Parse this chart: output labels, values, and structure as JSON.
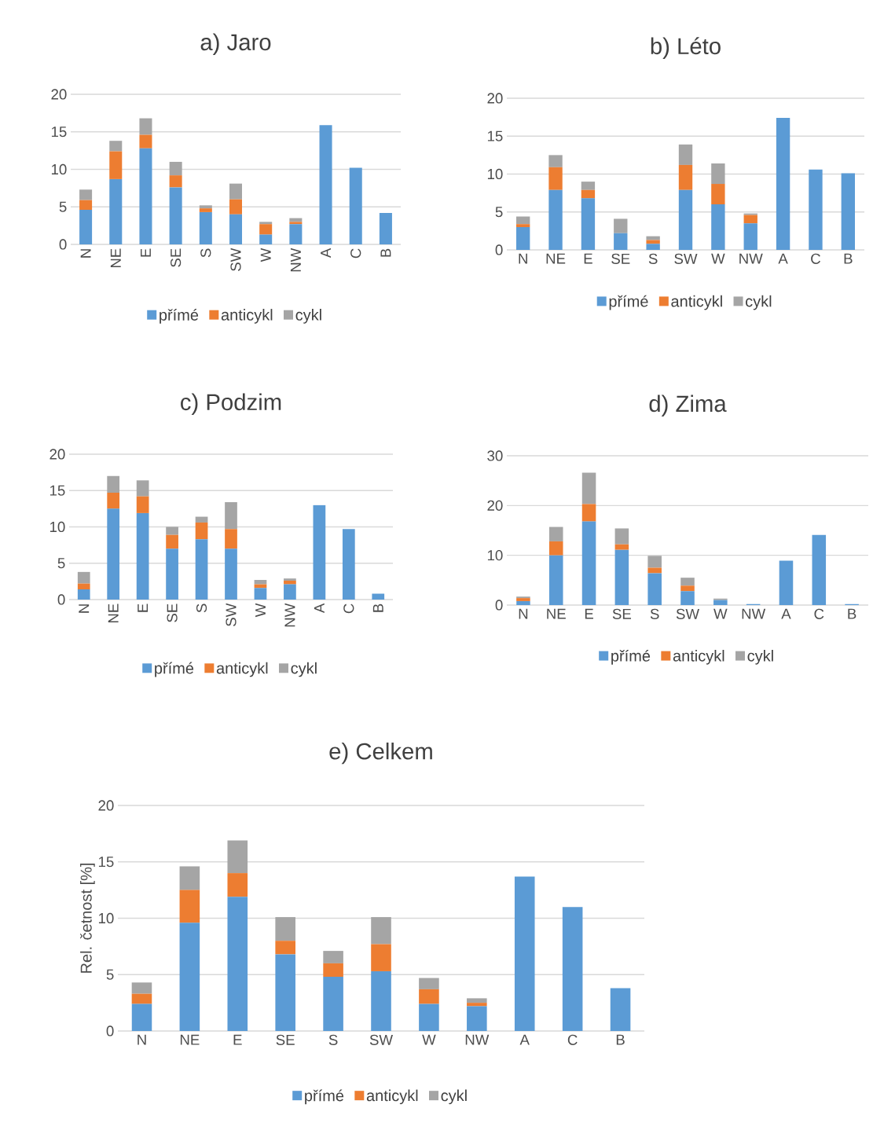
{
  "chart_data": [
    {
      "type": "bar",
      "stacked": true,
      "title": "a) Jaro",
      "categories": [
        "N",
        "NE",
        "E",
        "SE",
        "S",
        "SW",
        "W",
        "NW",
        "A",
        "C",
        "B"
      ],
      "series": [
        {
          "name": "přímé",
          "color": "#5b9bd5",
          "values": [
            4.6,
            8.7,
            12.8,
            7.6,
            4.3,
            4.0,
            1.3,
            2.7,
            15.9,
            10.2,
            4.2
          ]
        },
        {
          "name": "anticykl",
          "color": "#ed7d31",
          "values": [
            1.3,
            3.7,
            1.8,
            1.6,
            0.5,
            2.0,
            1.4,
            0.3,
            0,
            0,
            0
          ]
        },
        {
          "name": "cykl",
          "color": "#a5a5a5",
          "values": [
            1.4,
            1.4,
            2.2,
            1.8,
            0.4,
            2.1,
            0.3,
            0.5,
            0,
            0,
            0
          ]
        }
      ],
      "ylim": [
        0,
        20
      ],
      "yticks": [
        0,
        5,
        10,
        15,
        20
      ],
      "grid": "y",
      "legend": "bottom"
    },
    {
      "type": "bar",
      "stacked": true,
      "title": "b) Léto",
      "categories": [
        "N",
        "NE",
        "E",
        "SE",
        "S",
        "SW",
        "W",
        "NW",
        "A",
        "C",
        "B"
      ],
      "series": [
        {
          "name": "přímé",
          "color": "#5b9bd5",
          "values": [
            3.0,
            7.9,
            6.8,
            2.2,
            0.8,
            7.9,
            6.0,
            3.5,
            17.4,
            10.6,
            10.1
          ]
        },
        {
          "name": "anticykl",
          "color": "#ed7d31",
          "values": [
            0.4,
            3.0,
            1.1,
            0,
            0.5,
            3.3,
            2.7,
            1.1,
            0,
            0,
            0
          ]
        },
        {
          "name": "cykl",
          "color": "#a5a5a5",
          "values": [
            1.0,
            1.6,
            1.1,
            1.9,
            0.5,
            2.7,
            2.7,
            0.2,
            0,
            0,
            0
          ]
        }
      ],
      "ylim": [
        0,
        20
      ],
      "yticks": [
        0,
        5,
        10,
        15,
        20
      ],
      "grid": "y",
      "legend": "bottom"
    },
    {
      "type": "bar",
      "stacked": true,
      "title": "c) Podzim",
      "categories": [
        "N",
        "NE",
        "E",
        "SE",
        "S",
        "SW",
        "W",
        "NW",
        "A",
        "C",
        "B"
      ],
      "series": [
        {
          "name": "přímé",
          "color": "#5b9bd5",
          "values": [
            1.4,
            12.5,
            11.9,
            7.0,
            8.3,
            7.0,
            1.6,
            2.1,
            13.0,
            9.7,
            0.8
          ]
        },
        {
          "name": "anticykl",
          "color": "#ed7d31",
          "values": [
            0.8,
            2.2,
            2.3,
            1.9,
            2.3,
            2.7,
            0.5,
            0.5,
            0,
            0,
            0
          ]
        },
        {
          "name": "cykl",
          "color": "#a5a5a5",
          "values": [
            1.6,
            2.3,
            2.2,
            1.1,
            0.8,
            3.7,
            0.6,
            0.3,
            0,
            0,
            0
          ]
        }
      ],
      "ylim": [
        0,
        20
      ],
      "yticks": [
        0,
        5,
        10,
        15,
        20
      ],
      "grid": "y",
      "legend": "bottom"
    },
    {
      "type": "bar",
      "stacked": true,
      "title": "d) Zima",
      "categories": [
        "N",
        "NE",
        "E",
        "SE",
        "S",
        "SW",
        "W",
        "NW",
        "A",
        "C",
        "B"
      ],
      "series": [
        {
          "name": "přímé",
          "color": "#5b9bd5",
          "values": [
            0.8,
            10.0,
            16.8,
            11.1,
            6.4,
            2.8,
            1.0,
            0.2,
            8.9,
            14.1,
            0.2
          ]
        },
        {
          "name": "anticykl",
          "color": "#ed7d31",
          "values": [
            0.6,
            2.8,
            3.5,
            1.1,
            1.1,
            1.1,
            0,
            0,
            0,
            0,
            0
          ]
        },
        {
          "name": "cykl",
          "color": "#a5a5a5",
          "values": [
            0.3,
            2.9,
            6.3,
            3.2,
            2.4,
            1.6,
            0.3,
            0,
            0,
            0,
            0
          ]
        }
      ],
      "ylim": [
        0,
        30
      ],
      "yticks": [
        0,
        10,
        20,
        30
      ],
      "grid": "y",
      "legend": "bottom"
    },
    {
      "type": "bar",
      "stacked": true,
      "title": "e) Celkem",
      "ylabel": "Rel. četnost [%]",
      "categories": [
        "N",
        "NE",
        "E",
        "SE",
        "S",
        "SW",
        "W",
        "NW",
        "A",
        "C",
        "B"
      ],
      "series": [
        {
          "name": "přímé",
          "color": "#5b9bd5",
          "values": [
            2.4,
            9.6,
            11.9,
            6.8,
            4.8,
            5.3,
            2.4,
            2.2,
            13.7,
            11.0,
            3.8
          ]
        },
        {
          "name": "anticykl",
          "color": "#ed7d31",
          "values": [
            0.9,
            2.9,
            2.1,
            1.2,
            1.2,
            2.4,
            1.3,
            0.3,
            0,
            0,
            0
          ]
        },
        {
          "name": "cykl",
          "color": "#a5a5a5",
          "values": [
            1.0,
            2.1,
            2.9,
            2.1,
            1.1,
            2.4,
            1.0,
            0.4,
            0,
            0,
            0
          ]
        }
      ],
      "ylim": [
        0,
        20
      ],
      "yticks": [
        0,
        5,
        10,
        15,
        20
      ],
      "grid": "y",
      "legend": "bottom"
    }
  ]
}
